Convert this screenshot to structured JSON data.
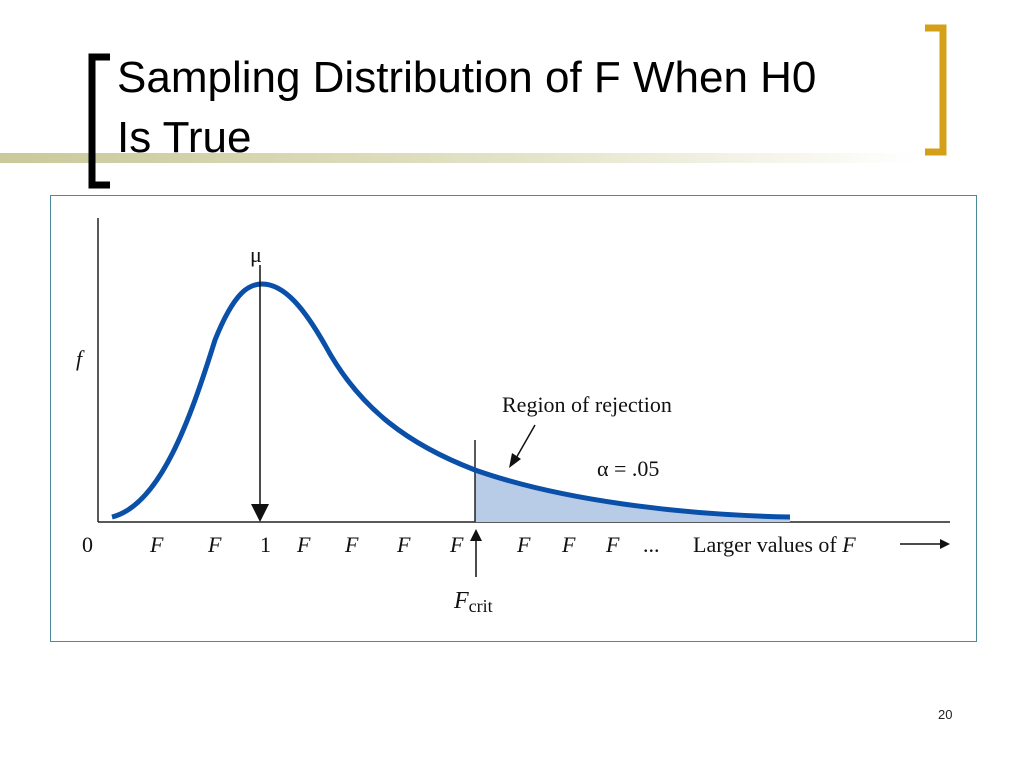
{
  "title": "Sampling Distribution of F When H0 Is True",
  "figure": {
    "y_label": "f",
    "mean_label": "μ",
    "x_tick_labels": [
      "0",
      "F",
      "F",
      "1",
      "F",
      "F",
      "F",
      "F",
      "F",
      "F",
      "F",
      "..."
    ],
    "x_label": {
      "text": "Larger values of",
      "variable": "F"
    },
    "region_label": "Region of rejection",
    "alpha_label": "α = .05",
    "critical_label": {
      "symbol": "F",
      "subscript": "crit"
    }
  },
  "page_number": "20"
}
